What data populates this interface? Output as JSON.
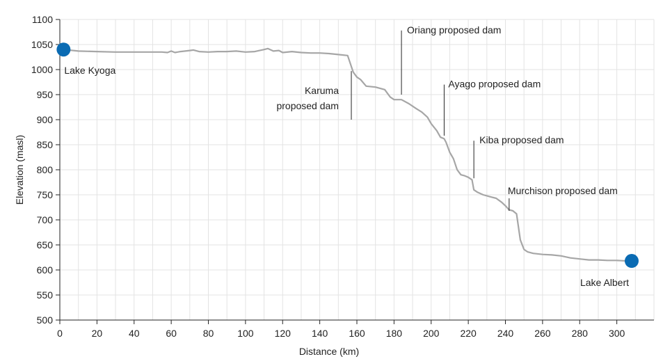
{
  "chart_data": {
    "type": "line",
    "title": "",
    "xlabel": "Distance (km)",
    "ylabel": "Elevation (masl)",
    "xlim": [
      0,
      320
    ],
    "ylim": [
      500,
      1100
    ],
    "x_ticks": [
      0,
      20,
      40,
      60,
      80,
      100,
      120,
      140,
      160,
      180,
      200,
      220,
      240,
      260,
      280,
      300
    ],
    "y_ticks": [
      500,
      550,
      600,
      650,
      700,
      750,
      800,
      850,
      900,
      950,
      1000,
      1050,
      1100
    ],
    "grid": true,
    "line_color": "#a6a6a6",
    "series": [
      {
        "x": [
          2,
          10,
          20,
          30,
          40,
          50,
          55,
          58,
          60,
          62,
          65,
          70,
          72,
          75,
          80,
          85,
          90,
          95,
          100,
          105,
          110,
          112,
          115,
          118,
          120,
          125,
          130,
          135,
          140,
          145,
          150,
          155,
          158,
          160,
          162,
          165,
          170,
          175,
          178,
          180,
          184,
          188,
          192,
          195,
          198,
          200,
          203,
          205,
          207,
          208,
          210,
          212,
          214,
          216,
          218,
          220,
          222,
          223,
          225,
          228,
          232,
          235,
          238,
          240,
          242,
          244,
          246,
          248,
          250,
          252,
          255,
          260,
          265,
          270,
          275,
          280,
          285,
          290,
          295,
          300,
          305,
          308
        ],
        "y": [
          1040,
          1037,
          1036,
          1035,
          1035,
          1035,
          1035,
          1034,
          1037,
          1034,
          1036,
          1038,
          1039,
          1036,
          1035,
          1036,
          1036,
          1037,
          1035,
          1036,
          1040,
          1042,
          1037,
          1038,
          1034,
          1036,
          1034,
          1033,
          1033,
          1032,
          1030,
          1028,
          995,
          985,
          980,
          967,
          965,
          960,
          945,
          940,
          940,
          932,
          922,
          915,
          905,
          892,
          878,
          865,
          862,
          855,
          835,
          822,
          800,
          790,
          788,
          785,
          780,
          760,
          755,
          750,
          746,
          743,
          735,
          728,
          720,
          718,
          712,
          660,
          641,
          636,
          633,
          631,
          630,
          628,
          624,
          622,
          620,
          620,
          619,
          619,
          618,
          618
        ]
      }
    ],
    "endpoints": [
      {
        "label": "Lake Kyoga",
        "x": 2,
        "y": 1040
      },
      {
        "label": "Lake Albert",
        "x": 308,
        "y": 618
      }
    ],
    "endpoint_color": "#0a6bb3",
    "annotations": [
      {
        "lines": [
          "Karuma",
          "proposed dam"
        ],
        "x": 157,
        "y_top": 997,
        "y_bottom": 900
      },
      {
        "lines": [
          "Oriang proposed dam"
        ],
        "x": 184,
        "y_top": 1078,
        "y_bottom": 950
      },
      {
        "lines": [
          "Ayago proposed dam"
        ],
        "x": 207,
        "y_top": 970,
        "y_bottom": 868
      },
      {
        "lines": [
          "Kiba proposed dam"
        ],
        "x": 223,
        "y_top": 858,
        "y_bottom": 783
      },
      {
        "lines": [
          "Murchison proposed dam"
        ],
        "x": 242,
        "y_top": 743,
        "y_bottom": 718
      }
    ]
  }
}
